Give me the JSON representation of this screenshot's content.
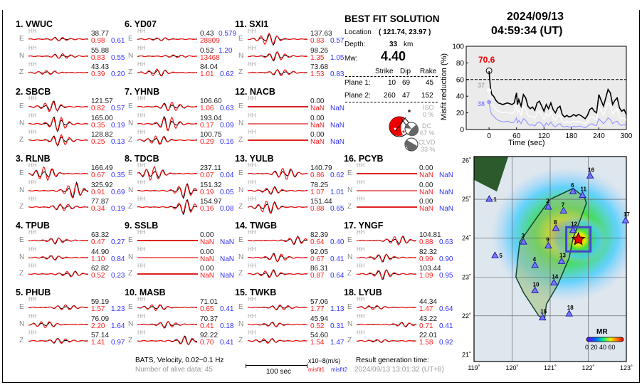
{
  "header": {
    "date": "2024/09/13",
    "time": "04:59:34  (UT)"
  },
  "solution": {
    "title": "BEST FIT SOLUTION",
    "location_label": "Location",
    "location": "( 121.74,  23.97 )",
    "depth_label": "Depth:",
    "depth": "33",
    "depth_unit": "km",
    "mw_label": "Mw:",
    "mw": "4.40",
    "table_headers": [
      "Strike",
      "Dip",
      "Rake"
    ],
    "planes": [
      {
        "label": "Plane 1:",
        "values": [
          "10",
          "69",
          "45"
        ]
      },
      {
        "label": "Plane 2:",
        "values": [
          "260",
          "47",
          "152"
        ]
      }
    ],
    "components": [
      {
        "label": "ISO",
        "value": "0 %"
      },
      {
        "label": "DC",
        "value": "67 %"
      },
      {
        "label": "CLVD",
        "value": "33 %"
      }
    ]
  },
  "stations": [
    {
      "title": "1.  VWUC",
      "comps": [
        [
          "E",
          "HH",
          "38.77",
          "0.98",
          "0.61"
        ],
        [
          "N",
          "HH",
          "55.88",
          "0.83",
          "0.55"
        ],
        [
          "Z",
          "HH",
          "43.43",
          "0.39",
          "0.20"
        ]
      ]
    },
    {
      "title": "2.  SBCB",
      "comps": [
        [
          "E",
          "HH",
          "121.57",
          "0.82",
          "0.57"
        ],
        [
          "N",
          "HH",
          "165.00",
          "0.35",
          "0.19"
        ],
        [
          "Z",
          "HH",
          "128.82",
          "0.25",
          "0.13"
        ]
      ]
    },
    {
      "title": "3.  RLNB",
      "comps": [
        [
          "E",
          "HH",
          "166.49",
          "0.67",
          "0.35"
        ],
        [
          "N",
          "HH",
          "325.92",
          "0.91",
          "0.69"
        ],
        [
          "Z",
          "HH",
          "77.87",
          "0.34",
          "0.19"
        ]
      ]
    },
    {
      "title": "4.  TPUB",
      "comps": [
        [
          "E",
          "HH",
          "63.32",
          "0.47",
          "0.27"
        ],
        [
          "N",
          "HH",
          "44.90",
          "1.10",
          "0.84"
        ],
        [
          "Z",
          "HH",
          "62.82",
          "0.52",
          "0.23"
        ]
      ]
    },
    {
      "title": "5.  PHUB",
      "comps": [
        [
          "E",
          "HH",
          "59.19",
          "1.57",
          "1.23"
        ],
        [
          "N",
          "HH",
          "76.09",
          "2.20",
          "1.64"
        ],
        [
          "Z",
          "HH",
          "57.14",
          "1.41",
          "0.97"
        ]
      ]
    },
    {
      "title": "6.  YD07",
      "comps": [
        [
          "E",
          "HH",
          "0.43",
          "28809",
          "0.579"
        ],
        [
          "N",
          "HH",
          "0.52",
          "13468",
          "1.20"
        ],
        [
          "Z",
          "HH",
          "84.04",
          "1.01",
          "0.62"
        ]
      ]
    },
    {
      "title": "7.  YHNB",
      "comps": [
        [
          "E",
          "HH",
          "106.60",
          "1.06",
          "0.63"
        ],
        [
          "N",
          "HH",
          "193.04",
          "0.17",
          "0.09"
        ],
        [
          "Z",
          "HH",
          "100.75",
          "0.29",
          "0.16"
        ]
      ]
    },
    {
      "title": "8.  TDCB",
      "comps": [
        [
          "E",
          "HH",
          "237.11",
          "0.07",
          "0.04"
        ],
        [
          "N",
          "HH",
          "151.32",
          "0.19",
          "0.05"
        ],
        [
          "Z",
          "HH",
          "154.97",
          "0.16",
          "0.08"
        ]
      ]
    },
    {
      "title": "9.  SSLB",
      "comps": [
        [
          "E",
          "HH",
          "0.00",
          "NaN",
          "NaN"
        ],
        [
          "N",
          "HH",
          "0.00",
          "NaN",
          "NaN"
        ],
        [
          "Z",
          "HH",
          "0.00",
          "NaN",
          "NaN"
        ]
      ]
    },
    {
      "title": "10. MASB",
      "comps": [
        [
          "E",
          "HH",
          "71.01",
          "0.65",
          "0.41"
        ],
        [
          "N",
          "HH",
          "70.37",
          "0.41",
          "0.18"
        ],
        [
          "Z",
          "HH",
          "92.22",
          "0.70",
          "0.41"
        ]
      ]
    },
    {
      "title": "11. SXI1",
      "comps": [
        [
          "E",
          "HH",
          "137.63",
          "0.83",
          "0.57"
        ],
        [
          "N",
          "HH",
          "98.26",
          "1.35",
          "1.05"
        ],
        [
          "Z",
          "HH",
          "73.68",
          "1.53",
          "0.83"
        ]
      ]
    },
    {
      "title": "12. NACB",
      "comps": [
        [
          "E",
          "HH",
          "0.00",
          "NaN",
          "NaN"
        ],
        [
          "N",
          "HH",
          "0.00",
          "NaN",
          "NaN"
        ],
        [
          "Z",
          "HH",
          "0.00",
          "NaN",
          "NaN"
        ]
      ]
    },
    {
      "title": "13. YULB",
      "comps": [
        [
          "E",
          "HH",
          "140.79",
          "0.86",
          "0.62"
        ],
        [
          "N",
          "HH",
          "78.25",
          "1.07",
          "1.01"
        ],
        [
          "Z",
          "HH",
          "151.44",
          "0.88",
          "0.65"
        ]
      ]
    },
    {
      "title": "14. TWGB",
      "comps": [
        [
          "E",
          "HH",
          "82.39",
          "0.64",
          "0.40"
        ],
        [
          "N",
          "HH",
          "92.05",
          "0.67",
          "0.41"
        ],
        [
          "Z",
          "HH",
          "86.31",
          "0.87",
          "0.64"
        ]
      ]
    },
    {
      "title": "15. TWKB",
      "comps": [
        [
          "E",
          "HH",
          "57.06",
          "1.77",
          "1.13"
        ],
        [
          "N",
          "HH",
          "45.94",
          "0.52",
          "0.31"
        ],
        [
          "Z",
          "HH",
          "54.60",
          "1.54",
          "1.47"
        ]
      ]
    },
    {
      "title": "16. PCYB",
      "comps": [
        [
          "E",
          "HH",
          "0.00",
          "NaN",
          "NaN"
        ],
        [
          "N",
          "HH",
          "0.00",
          "NaN",
          "NaN"
        ],
        [
          "Z",
          "HH",
          "0.00",
          "NaN",
          "NaN"
        ]
      ]
    },
    {
      "title": "17. YNGF",
      "comps": [
        [
          "E",
          "HH",
          "104.81",
          "0.88",
          "0.63"
        ],
        [
          "N",
          "HH",
          "82.32",
          "0.99",
          "0.90"
        ],
        [
          "Z",
          "HH",
          "103.44",
          "1.09",
          "0.95"
        ]
      ]
    },
    {
      "title": "18. LYUB",
      "comps": [
        [
          "E",
          "HH",
          "44.34",
          "1.47",
          "0.64"
        ],
        [
          "N",
          "HH",
          "43.22",
          "0.71",
          "0.41"
        ],
        [
          "Z",
          "HH",
          "22.01",
          "1.58",
          "0.92"
        ]
      ]
    }
  ],
  "footer": {
    "info": "BATS, Velocity, 0.02−0.1 Hz",
    "alive": "Number of alive data: 45",
    "scale_label": "100 sec",
    "units": "x10−8(m/s)",
    "misfit1": "misfit1",
    "misfit2": "misfit2",
    "gen_label": "Result generation time:",
    "gen_time": "2024/09/13 13:01:32 (UT+8)"
  },
  "chart_data": {
    "type": "line",
    "xlabel": "Time (sec)",
    "ylabel": "Misfit reduction (%)",
    "xlim": [
      -50,
      300
    ],
    "ylim": [
      0,
      100
    ],
    "xticks": [
      0,
      60,
      120,
      180,
      240,
      300
    ],
    "yticks": [
      0,
      20,
      40,
      60,
      80,
      100
    ],
    "threshold": 60,
    "peak_label": "70.6",
    "peak": [
      0,
      70.6
    ],
    "start_labels": [
      {
        "text": "37",
        "color": "#aaaaaa"
      },
      {
        "text": "38",
        "color": "#8888ff"
      }
    ],
    "x": [
      0,
      3,
      6,
      10,
      15,
      20,
      30,
      40,
      50,
      55,
      60,
      62,
      65,
      70,
      75,
      80,
      85,
      90,
      95,
      100,
      105,
      110,
      115,
      120,
      125,
      130,
      135,
      140,
      145,
      150,
      155,
      160,
      165,
      170,
      175,
      180,
      185,
      190,
      195,
      200,
      205,
      210,
      215,
      220,
      225,
      230,
      235,
      240,
      245,
      250,
      255,
      260,
      265,
      270,
      275,
      280,
      285,
      290,
      295,
      300
    ],
    "series": [
      {
        "color": "#000000",
        "values": [
          70,
          50,
          42,
          40,
          35,
          32,
          30,
          32,
          30,
          32,
          44,
          30,
          36,
          28,
          42,
          38,
          28,
          25,
          27,
          23,
          32,
          34,
          28,
          22,
          30,
          25,
          32,
          24,
          20,
          26,
          28,
          18,
          15,
          17,
          15,
          16,
          18,
          16,
          18,
          17,
          15,
          13,
          17,
          24,
          26,
          22,
          20,
          42,
          35,
          28,
          38,
          48,
          44,
          30,
          35,
          38,
          26,
          22,
          24,
          18
        ]
      },
      {
        "color": "#ffffff",
        "values": [
          47,
          36,
          30,
          28,
          24,
          22,
          20,
          21,
          19,
          21,
          30,
          19,
          24,
          17,
          28,
          25,
          17,
          15,
          16,
          13,
          20,
          22,
          17,
          12,
          19,
          15,
          21,
          14,
          11,
          16,
          17,
          10,
          8,
          10,
          8,
          9,
          10,
          9,
          10,
          9,
          8,
          7,
          9,
          14,
          16,
          13,
          12,
          28,
          23,
          17,
          25,
          32,
          29,
          19,
          22,
          25,
          15,
          13,
          14,
          11
        ]
      },
      {
        "color": "#9999ff",
        "values": [
          33,
          22,
          18,
          16,
          13,
          11,
          9,
          10,
          8,
          9,
          14,
          8,
          11,
          7,
          13,
          11,
          7,
          5,
          6,
          4,
          8,
          9,
          7,
          3,
          8,
          5,
          9,
          5,
          3,
          6,
          7,
          4,
          3,
          4,
          3,
          3,
          4,
          3,
          4,
          4,
          3,
          2,
          4,
          6,
          7,
          5,
          5,
          13,
          10,
          7,
          10,
          14,
          12,
          7,
          9,
          10,
          6,
          5,
          6,
          4
        ]
      }
    ]
  },
  "map": {
    "lon_ticks": [
      "119˚",
      "120˚",
      "121˚",
      "122˚",
      "123˚"
    ],
    "lat_ticks": [
      "21˚",
      "22˚",
      "23˚",
      "24˚",
      "25˚",
      "26˚"
    ],
    "colorbar_title": "MR",
    "colorbar_ticks": "0 20 40 60",
    "epicenter": [
      121.74,
      23.97
    ],
    "stations": [
      [
        "1",
        119.4,
        25.0
      ],
      [
        "2",
        120.95,
        24.8
      ],
      [
        "3",
        120.3,
        23.9
      ],
      [
        "4",
        120.6,
        23.3
      ],
      [
        "5",
        119.55,
        23.55
      ],
      [
        "6",
        121.6,
        25.2
      ],
      [
        "7",
        121.35,
        24.7
      ],
      [
        "8",
        121.15,
        24.25
      ],
      [
        "9",
        120.95,
        23.8
      ],
      [
        "10",
        120.6,
        22.65
      ],
      [
        "11",
        121.85,
        25.1
      ],
      [
        "12",
        121.6,
        24.2
      ],
      [
        "13",
        121.3,
        23.4
      ],
      [
        "14",
        121.1,
        22.85
      ],
      [
        "15",
        120.8,
        21.95
      ],
      [
        "16",
        122.05,
        25.6
      ],
      [
        "17",
        122.98,
        24.45
      ],
      [
        "18",
        121.5,
        22.05
      ]
    ]
  }
}
